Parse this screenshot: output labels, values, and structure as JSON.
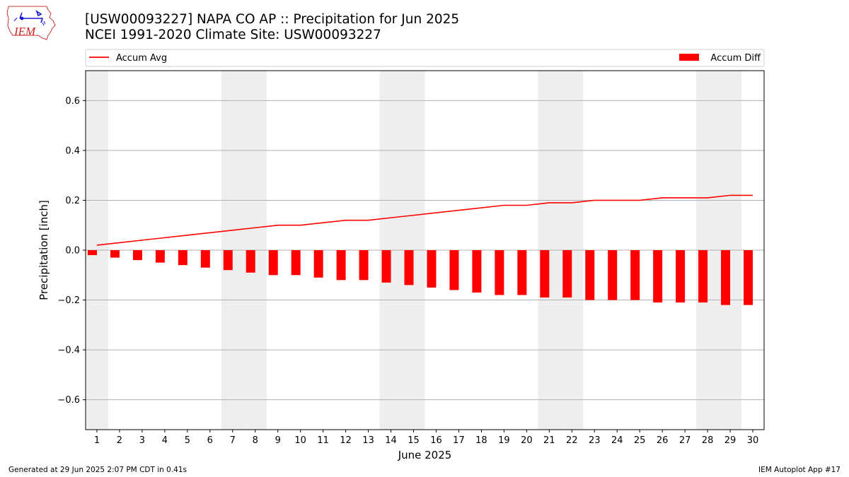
{
  "logo": {
    "text": "IEM"
  },
  "header": {
    "title_line1": "[USW00093227] NAPA CO AP :: Precipitation for Jun 2025",
    "title_line2": "NCEI 1991-2020 Climate Site: USW00093227"
  },
  "footer": {
    "left": "Generated at 29 Jun 2025 2:07 PM CDT in 0.41s",
    "right": "IEM Autoplot App #17"
  },
  "colors": {
    "series": "#ff0000",
    "weekend_band": "#eeeeee",
    "grid": "#b0b0b0"
  },
  "chart_data": {
    "type": "bar",
    "xlabel": "June 2025",
    "ylabel": "Precipitation [inch]",
    "ylim": [
      -0.72,
      0.72
    ],
    "yticks": [
      0.6,
      0.4,
      0.2,
      0.0,
      -0.2,
      -0.4,
      -0.6
    ],
    "ytick_labels": [
      "0.6",
      "0.4",
      "0.2",
      "0.0",
      "−0.2",
      "−0.4",
      "−0.6"
    ],
    "grid": "horizontal",
    "x": [
      1,
      2,
      3,
      4,
      5,
      6,
      7,
      8,
      9,
      10,
      11,
      12,
      13,
      14,
      15,
      16,
      17,
      18,
      19,
      20,
      21,
      22,
      23,
      24,
      25,
      26,
      27,
      28,
      29,
      30
    ],
    "weekend_days": [
      1,
      7,
      8,
      14,
      15,
      21,
      22,
      28,
      29
    ],
    "legend": {
      "placement": "top",
      "avg_label": "Accum Avg",
      "diff_label": "Accum Diff"
    },
    "series": [
      {
        "name": "Accum Avg",
        "kind": "line",
        "values": [
          0.02,
          0.03,
          0.04,
          0.05,
          0.06,
          0.07,
          0.08,
          0.09,
          0.1,
          0.1,
          0.11,
          0.12,
          0.12,
          0.13,
          0.14,
          0.15,
          0.16,
          0.17,
          0.18,
          0.18,
          0.19,
          0.19,
          0.2,
          0.2,
          0.2,
          0.21,
          0.21,
          0.21,
          0.22,
          0.22
        ]
      },
      {
        "name": "Accum Diff",
        "kind": "bar",
        "values": [
          -0.02,
          -0.03,
          -0.04,
          -0.05,
          -0.06,
          -0.07,
          -0.08,
          -0.09,
          -0.1,
          -0.1,
          -0.11,
          -0.12,
          -0.12,
          -0.13,
          -0.14,
          -0.15,
          -0.16,
          -0.17,
          -0.18,
          -0.18,
          -0.19,
          -0.19,
          -0.2,
          -0.2,
          -0.2,
          -0.21,
          -0.21,
          -0.21,
          -0.22,
          -0.22
        ]
      }
    ]
  }
}
